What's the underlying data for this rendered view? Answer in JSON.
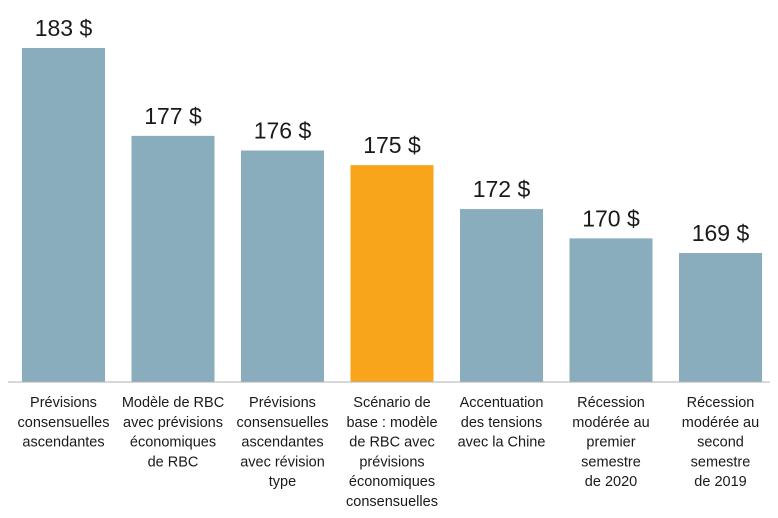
{
  "chart_data": {
    "type": "bar",
    "title": "",
    "xlabel": "",
    "ylabel": "",
    "categories": [
      [
        "Prévisions",
        "consensuelles",
        "ascendantes"
      ],
      [
        "Modèle de RBC",
        "avec prévisions",
        "économiques",
        "de RBC"
      ],
      [
        "Prévisions",
        "consensuelles",
        "ascendantes",
        "avec révision",
        "type"
      ],
      [
        "Scénario de",
        "base : modèle",
        "de RBC avec",
        "prévisions",
        "économiques",
        "consensuelles"
      ],
      [
        "Accentuation",
        "des tensions",
        "avec la Chine"
      ],
      [
        "Récession",
        "modérée au",
        "premier",
        "semestre",
        "de 2020"
      ],
      [
        "Récession",
        "modérée au",
        "second",
        "semestre",
        "de 2019"
      ]
    ],
    "values": [
      183,
      177,
      176,
      175,
      172,
      170,
      169
    ],
    "value_labels": [
      "183 $",
      "177 $",
      "176 $",
      "175 $",
      "172 $",
      "170 $",
      "169 $"
    ],
    "highlight_index": 3,
    "colors": {
      "bar": "#8aadbe",
      "highlight": "#f9a51b",
      "axis": "#b0b0b0"
    },
    "grid": false,
    "legend": "none"
  }
}
